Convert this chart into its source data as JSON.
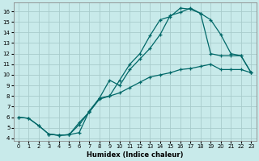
{
  "xlabel": "Humidex (Indice chaleur)",
  "bg_color": "#c8eaea",
  "grid_color": "#a8cccc",
  "line_color": "#006868",
  "xlim": [
    -0.5,
    23.5
  ],
  "ylim": [
    3.8,
    16.8
  ],
  "xticks": [
    0,
    1,
    2,
    3,
    4,
    5,
    6,
    7,
    8,
    9,
    10,
    11,
    12,
    13,
    14,
    15,
    16,
    17,
    18,
    19,
    20,
    21,
    22,
    23
  ],
  "yticks": [
    4,
    5,
    6,
    7,
    8,
    9,
    10,
    11,
    12,
    13,
    14,
    15,
    16
  ],
  "line1_x": [
    0,
    1,
    2,
    3,
    4,
    5,
    6,
    7,
    8,
    9,
    10,
    11,
    12,
    13,
    14,
    15,
    16,
    17,
    18,
    19,
    20,
    21,
    22,
    23
  ],
  "line1_y": [
    6.0,
    5.9,
    5.2,
    4.4,
    4.3,
    4.35,
    4.55,
    6.6,
    7.8,
    8.0,
    8.3,
    8.8,
    9.3,
    9.8,
    10.0,
    10.2,
    10.5,
    10.6,
    10.8,
    11.0,
    10.5,
    10.5,
    10.5,
    10.2
  ],
  "line2_x": [
    0,
    1,
    2,
    3,
    4,
    5,
    6,
    7,
    8,
    9,
    10,
    11,
    12,
    13,
    14,
    15,
    16,
    17,
    18,
    19,
    20,
    21,
    22,
    23
  ],
  "line2_y": [
    6.0,
    5.9,
    5.2,
    4.4,
    4.3,
    4.35,
    5.3,
    6.5,
    7.7,
    8.0,
    9.5,
    11.0,
    12.0,
    13.7,
    15.2,
    15.5,
    16.3,
    16.2,
    15.8,
    15.2,
    13.8,
    12.0,
    11.8,
    10.2
  ],
  "line3_x": [
    3,
    4,
    5,
    6,
    7,
    8,
    9,
    10,
    11,
    12,
    13,
    14,
    15,
    16,
    17,
    18,
    19,
    20,
    21,
    22,
    23
  ],
  "line3_y": [
    4.4,
    4.3,
    4.35,
    5.5,
    6.5,
    7.8,
    9.5,
    9.0,
    10.5,
    11.5,
    12.5,
    13.8,
    15.6,
    15.9,
    16.3,
    15.8,
    12.0,
    11.8,
    11.8,
    11.8,
    10.2
  ]
}
